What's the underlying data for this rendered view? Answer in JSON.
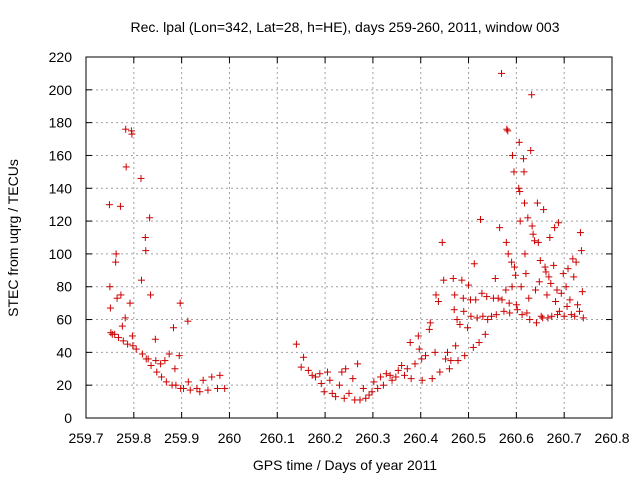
{
  "chart_data": {
    "type": "scatter",
    "title": "Rec. lpal (Lon=342, Lat=28, h=HE), days 259-260, 2011, window 003",
    "xlabel": "GPS time / Days of year 2011",
    "ylabel": "STEC from uqrg / TECUs",
    "xlim": [
      259.7,
      260.8
    ],
    "ylim": [
      0,
      220
    ],
    "x_ticks": [
      "259.7",
      "259.8",
      "259.9",
      "260",
      "260.1",
      "260.2",
      "260.3",
      "260.4",
      "260.5",
      "260.6",
      "260.7",
      "260.8"
    ],
    "y_ticks": [
      "0",
      "20",
      "40",
      "60",
      "80",
      "100",
      "120",
      "140",
      "160",
      "180",
      "200",
      "220"
    ],
    "x_tick_values": [
      259.7,
      259.8,
      259.9,
      260.0,
      260.1,
      260.2,
      260.3,
      260.4,
      260.5,
      260.6,
      260.7,
      260.8
    ],
    "y_tick_values": [
      0,
      20,
      40,
      60,
      80,
      100,
      120,
      140,
      160,
      180,
      200,
      220
    ],
    "grid": true,
    "marker": "+",
    "color": "#cc0000",
    "series": [
      {
        "points": [
          [
            259.749,
            130
          ],
          [
            259.75,
            80
          ],
          [
            259.751,
            67
          ],
          [
            259.752,
            52
          ],
          [
            259.755,
            51
          ],
          [
            259.76,
            51
          ],
          [
            259.762,
            95
          ],
          [
            259.763,
            100
          ],
          [
            259.765,
            73
          ],
          [
            259.768,
            49
          ],
          [
            259.772,
            129
          ],
          [
            259.773,
            75
          ],
          [
            259.776,
            56
          ],
          [
            259.778,
            47
          ],
          [
            259.782,
            61
          ],
          [
            259.783,
            176
          ],
          [
            259.784,
            153
          ],
          [
            259.787,
            45
          ],
          [
            259.792,
            70
          ],
          [
            259.795,
            175
          ],
          [
            259.796,
            173
          ],
          [
            259.797,
            50
          ],
          [
            259.798,
            44
          ],
          [
            259.805,
            42
          ],
          [
            259.815,
            146
          ],
          [
            259.816,
            84
          ],
          [
            259.818,
            39
          ],
          [
            259.824,
            110
          ],
          [
            259.825,
            102
          ],
          [
            259.826,
            36
          ],
          [
            259.83,
            36
          ],
          [
            259.833,
            122
          ],
          [
            259.835,
            75
          ],
          [
            259.836,
            32
          ],
          [
            259.845,
            48
          ],
          [
            259.846,
            35
          ],
          [
            259.848,
            28
          ],
          [
            259.856,
            33
          ],
          [
            259.858,
            25
          ],
          [
            259.865,
            35
          ],
          [
            259.868,
            22
          ],
          [
            259.874,
            39
          ],
          [
            259.88,
            20
          ],
          [
            259.883,
            55
          ],
          [
            259.886,
            30
          ],
          [
            259.888,
            20
          ],
          [
            259.895,
            38
          ],
          [
            259.897,
            70
          ],
          [
            259.898,
            18
          ],
          [
            259.904,
            18
          ],
          [
            259.913,
            59
          ],
          [
            259.914,
            22
          ],
          [
            259.918,
            17
          ],
          [
            259.932,
            18
          ],
          [
            259.938,
            16
          ],
          [
            259.945,
            23
          ],
          [
            259.955,
            17
          ],
          [
            259.963,
            25
          ],
          [
            259.975,
            18
          ],
          [
            259.98,
            26
          ],
          [
            259.99,
            18
          ]
        ]
      },
      {
        "points": [
          [
            260.14,
            45
          ],
          [
            260.15,
            31
          ],
          [
            260.155,
            37
          ],
          [
            260.165,
            29
          ],
          [
            260.173,
            26
          ],
          [
            260.18,
            25
          ],
          [
            260.189,
            27
          ],
          [
            260.192,
            21
          ],
          [
            260.198,
            16
          ],
          [
            260.205,
            28
          ],
          [
            260.21,
            23
          ],
          [
            260.215,
            15
          ],
          [
            260.222,
            13
          ],
          [
            260.23,
            20
          ],
          [
            260.235,
            28
          ],
          [
            260.24,
            12
          ],
          [
            260.243,
            30
          ],
          [
            260.25,
            15
          ],
          [
            260.258,
            24
          ],
          [
            260.262,
            11
          ],
          [
            260.268,
            33
          ],
          [
            260.273,
            11
          ],
          [
            260.28,
            18
          ],
          [
            260.285,
            12
          ],
          [
            260.292,
            14
          ],
          [
            260.298,
            16
          ],
          [
            260.302,
            22
          ],
          [
            260.31,
            18
          ],
          [
            260.316,
            25
          ],
          [
            260.322,
            20
          ],
          [
            260.328,
            27
          ],
          [
            260.336,
            26
          ],
          [
            260.34,
            23
          ],
          [
            260.348,
            25
          ],
          [
            260.353,
            29
          ],
          [
            260.36,
            32
          ],
          [
            260.366,
            26
          ],
          [
            260.372,
            30
          ],
          [
            260.378,
            46
          ],
          [
            260.38,
            24
          ],
          [
            260.388,
            33
          ],
          [
            260.395,
            50
          ],
          [
            260.397,
            42
          ],
          [
            260.402,
            36
          ],
          [
            260.403,
            23
          ],
          [
            260.41,
            38
          ],
          [
            260.418,
            54
          ],
          [
            260.42,
            58
          ],
          [
            260.424,
            24
          ],
          [
            260.43,
            40
          ],
          [
            260.432,
            75
          ],
          [
            260.437,
            71
          ],
          [
            260.44,
            28
          ],
          [
            260.445,
            107
          ],
          [
            260.448,
            84
          ],
          [
            260.452,
            36
          ],
          [
            260.456,
            40
          ],
          [
            260.46,
            30
          ],
          [
            260.463,
            35
          ],
          [
            260.468,
            85
          ],
          [
            260.47,
            66
          ],
          [
            260.471,
            75
          ],
          [
            260.473,
            44
          ],
          [
            260.476,
            60
          ],
          [
            260.478,
            35
          ],
          [
            260.482,
            57
          ],
          [
            260.486,
            84
          ],
          [
            260.489,
            73
          ],
          [
            260.49,
            65
          ],
          [
            260.492,
            38
          ],
          [
            260.498,
            55
          ],
          [
            260.5,
            81
          ],
          [
            260.504,
            72
          ],
          [
            260.505,
            62
          ],
          [
            260.51,
            43
          ],
          [
            260.512,
            94
          ],
          [
            260.515,
            72
          ],
          [
            260.518,
            61
          ],
          [
            260.522,
            46
          ],
          [
            260.525,
            121
          ],
          [
            260.528,
            76
          ],
          [
            260.53,
            62
          ],
          [
            260.535,
            51
          ],
          [
            260.538,
            74
          ],
          [
            260.54,
            60
          ],
          [
            260.548,
            62
          ],
          [
            260.552,
            73
          ],
          [
            260.556,
            85
          ],
          [
            260.558,
            63
          ],
          [
            260.562,
            73
          ],
          [
            260.565,
            116
          ],
          [
            260.569,
            210
          ],
          [
            260.57,
            72
          ],
          [
            260.574,
            65
          ],
          [
            260.578,
            78
          ],
          [
            260.579,
            107
          ],
          [
            260.58,
            176
          ],
          [
            260.582,
            175
          ],
          [
            260.583,
            100
          ],
          [
            260.585,
            70
          ],
          [
            260.586,
            64
          ],
          [
            260.59,
            95
          ],
          [
            260.591,
            80
          ],
          [
            260.592,
            160
          ],
          [
            260.595,
            150
          ],
          [
            260.596,
            92
          ],
          [
            260.598,
            87
          ],
          [
            260.6,
            69
          ],
          [
            260.602,
            66
          ],
          [
            260.605,
            140
          ],
          [
            260.606,
            168
          ],
          [
            260.607,
            138
          ],
          [
            260.608,
            120
          ],
          [
            260.61,
            80
          ],
          [
            260.612,
            63
          ],
          [
            260.615,
            158
          ],
          [
            260.616,
            150
          ],
          [
            260.617,
            131
          ],
          [
            260.618,
            100
          ],
          [
            260.62,
            88
          ],
          [
            260.622,
            64
          ],
          [
            260.624,
            122
          ],
          [
            260.626,
            73
          ],
          [
            260.628,
            60
          ],
          [
            260.63,
            163
          ],
          [
            260.632,
            197
          ],
          [
            260.633,
            117
          ],
          [
            260.635,
            112
          ],
          [
            260.638,
            108
          ],
          [
            260.64,
            78
          ],
          [
            260.642,
            58
          ],
          [
            260.644,
            131
          ],
          [
            260.646,
            107
          ],
          [
            260.648,
            83
          ],
          [
            260.65,
            96
          ],
          [
            260.652,
            62
          ],
          [
            260.655,
            61
          ],
          [
            260.657,
            127
          ],
          [
            260.66,
            92
          ],
          [
            260.662,
            89
          ],
          [
            260.664,
            75
          ],
          [
            260.666,
            61
          ],
          [
            260.668,
            86
          ],
          [
            260.67,
            110
          ],
          [
            260.672,
            82
          ],
          [
            260.674,
            62
          ],
          [
            260.678,
            93
          ],
          [
            260.68,
            116
          ],
          [
            260.682,
            71
          ],
          [
            260.685,
            78
          ],
          [
            260.686,
            63
          ],
          [
            260.688,
            119
          ],
          [
            260.69,
            65
          ],
          [
            260.694,
            76
          ],
          [
            260.698,
            88
          ],
          [
            260.7,
            62
          ],
          [
            260.704,
            80
          ],
          [
            260.706,
            68
          ],
          [
            260.708,
            91
          ],
          [
            260.712,
            72
          ],
          [
            260.715,
            63
          ],
          [
            260.718,
            97
          ],
          [
            260.72,
            86
          ],
          [
            260.722,
            62
          ],
          [
            260.725,
            95
          ],
          [
            260.728,
            69
          ],
          [
            260.732,
            65
          ],
          [
            260.734,
            113
          ],
          [
            260.736,
            102
          ],
          [
            260.738,
            77
          ],
          [
            260.74,
            61
          ]
        ]
      }
    ]
  }
}
